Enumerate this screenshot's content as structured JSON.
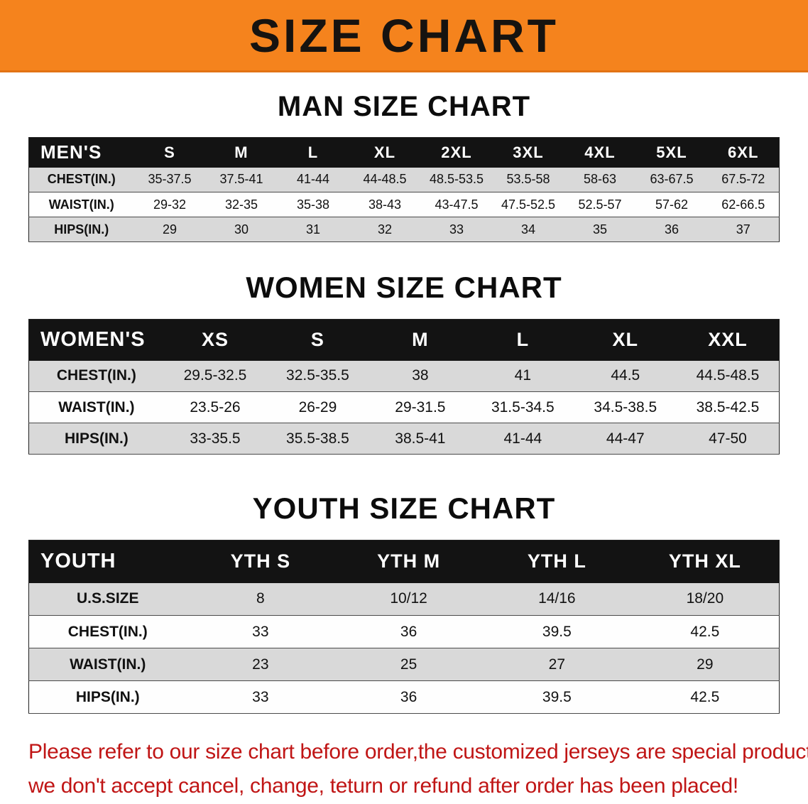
{
  "banner": {
    "title": "SIZE CHART",
    "bg_color": "#f5831d",
    "text_color": "#161310"
  },
  "sections": [
    {
      "id": "men",
      "heading": "MAN SIZE CHART",
      "table": {
        "header": [
          "MEN'S",
          "S",
          "M",
          "L",
          "XL",
          "2XL",
          "3XL",
          "4XL",
          "5XL",
          "6XL"
        ],
        "rows": [
          {
            "label": "CHEST(IN.)",
            "values": [
              "35-37.5",
              "37.5-41",
              "41-44",
              "44-48.5",
              "48.5-53.5",
              "53.5-58",
              "58-63",
              "63-67.5",
              "67.5-72"
            ]
          },
          {
            "label": "WAIST(IN.)",
            "values": [
              "29-32",
              "32-35",
              "35-38",
              "38-43",
              "43-47.5",
              "47.5-52.5",
              "52.5-57",
              "57-62",
              "62-66.5"
            ]
          },
          {
            "label": "HIPS(IN.)",
            "values": [
              "29",
              "30",
              "31",
              "32",
              "33",
              "34",
              "35",
              "36",
              "37"
            ]
          }
        ]
      }
    },
    {
      "id": "women",
      "heading": "WOMEN SIZE CHART",
      "table": {
        "header": [
          "WOMEN'S",
          "XS",
          "S",
          "M",
          "L",
          "XL",
          "XXL"
        ],
        "rows": [
          {
            "label": "CHEST(IN.)",
            "values": [
              "29.5-32.5",
              "32.5-35.5",
              "38",
              "41",
              "44.5",
              "44.5-48.5"
            ]
          },
          {
            "label": "WAIST(IN.)",
            "values": [
              "23.5-26",
              "26-29",
              "29-31.5",
              "31.5-34.5",
              "34.5-38.5",
              "38.5-42.5"
            ]
          },
          {
            "label": "HIPS(IN.)",
            "values": [
              "33-35.5",
              "35.5-38.5",
              "38.5-41",
              "41-44",
              "44-47",
              "47-50"
            ]
          }
        ]
      }
    },
    {
      "id": "youth",
      "heading": "YOUTH SIZE CHART",
      "table": {
        "header": [
          "YOUTH",
          "YTH S",
          "YTH M",
          "YTH L",
          "YTH XL"
        ],
        "rows": [
          {
            "label": "U.S.SIZE",
            "values": [
              "8",
              "10/12",
              "14/16",
              "18/20"
            ]
          },
          {
            "label": "CHEST(IN.)",
            "values": [
              "33",
              "36",
              "39.5",
              "42.5"
            ]
          },
          {
            "label": "WAIST(IN.)",
            "values": [
              "23",
              "25",
              "27",
              "29"
            ]
          },
          {
            "label": "HIPS(IN.)",
            "values": [
              "33",
              "36",
              "39.5",
              "42.5"
            ]
          }
        ]
      }
    }
  ],
  "disclaimer": {
    "line1": "Please refer to our size chart before order,the customized jerseys are special products,",
    "line2": "we don't accept cancel, change, teturn or refund after order has been placed!",
    "color": "#c01515"
  }
}
